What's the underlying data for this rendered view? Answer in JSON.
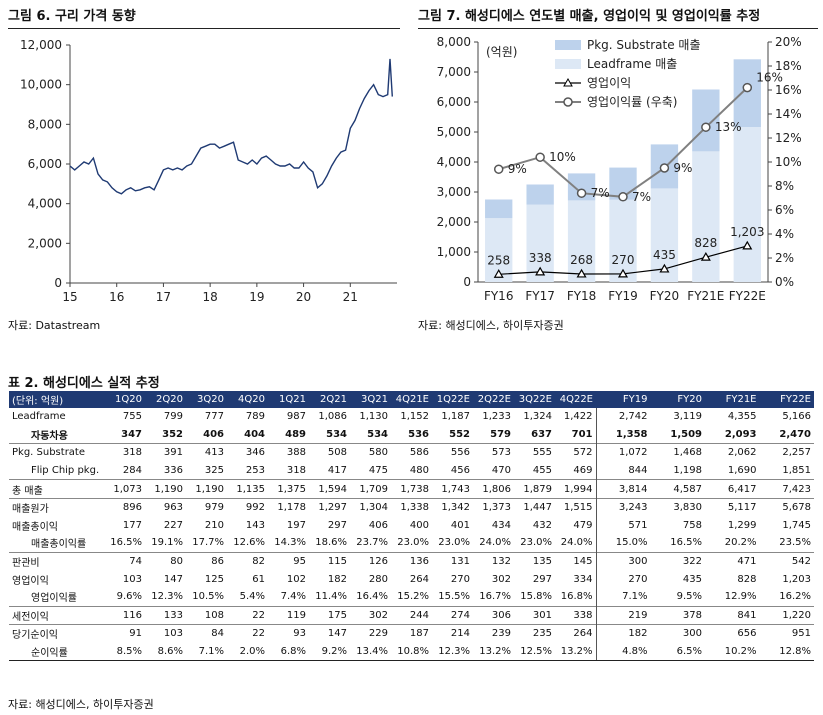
{
  "fig6": {
    "title": "그림 6. 구리 가격 동향",
    "source": "자료: Datastream"
  },
  "fig7": {
    "title": "그림 7. 해성디에스 연도별 매출, 영업이익 및 영업이익률 추정",
    "source": "자료: 해성디에스, 하이투자증권",
    "unit_label": "(억원)"
  },
  "table2": {
    "title": "표 2. 해성디에스 실적 추정",
    "source": "자료: 해성디에스, 하이투자증권",
    "headers": [
      "(단위: 억원)",
      "1Q20",
      "2Q20",
      "3Q20",
      "4Q20",
      "1Q21",
      "2Q21",
      "3Q21",
      "4Q21E",
      "1Q22E",
      "2Q22E",
      "3Q22E",
      "4Q22E",
      "FY19",
      "FY20",
      "FY21E",
      "FY22E"
    ],
    "rows": [
      {
        "label": "Leadframe",
        "values": [
          "755",
          "799",
          "777",
          "789",
          "987",
          "1,086",
          "1,130",
          "1,152",
          "1,187",
          "1,233",
          "1,324",
          "1,422",
          "2,742",
          "3,119",
          "4,355",
          "5,166"
        ]
      },
      {
        "label": "자동차용",
        "sub": true,
        "bold": true,
        "values": [
          "347",
          "352",
          "406",
          "404",
          "489",
          "534",
          "534",
          "536",
          "552",
          "579",
          "637",
          "701",
          "1,358",
          "1,509",
          "2,093",
          "2,470"
        ]
      },
      {
        "label": "Pkg. Substrate",
        "sep": true,
        "values": [
          "318",
          "391",
          "413",
          "346",
          "388",
          "508",
          "580",
          "586",
          "556",
          "573",
          "555",
          "572",
          "1,072",
          "1,468",
          "2,062",
          "2,257"
        ]
      },
      {
        "label": "Flip Chip pkg.",
        "sub": true,
        "values": [
          "284",
          "336",
          "325",
          "253",
          "318",
          "417",
          "475",
          "480",
          "456",
          "470",
          "455",
          "469",
          "844",
          "1,198",
          "1,690",
          "1,851"
        ]
      },
      {
        "label": "총 매출",
        "sep": true,
        "values": [
          "1,073",
          "1,190",
          "1,190",
          "1,135",
          "1,375",
          "1,594",
          "1,709",
          "1,738",
          "1,743",
          "1,806",
          "1,879",
          "1,994",
          "3,814",
          "4,587",
          "6,417",
          "7,423"
        ]
      },
      {
        "label": "매출원가",
        "sep": true,
        "values": [
          "896",
          "963",
          "979",
          "992",
          "1,178",
          "1,297",
          "1,304",
          "1,338",
          "1,342",
          "1,373",
          "1,447",
          "1,515",
          "3,243",
          "3,830",
          "5,117",
          "5,678"
        ]
      },
      {
        "label": "매출총이익",
        "values": [
          "177",
          "227",
          "210",
          "143",
          "197",
          "297",
          "406",
          "400",
          "401",
          "434",
          "432",
          "479",
          "571",
          "758",
          "1,299",
          "1,745"
        ]
      },
      {
        "label": "매출총이익률",
        "sub": true,
        "values": [
          "16.5%",
          "19.1%",
          "17.7%",
          "12.6%",
          "14.3%",
          "18.6%",
          "23.7%",
          "23.0%",
          "23.0%",
          "24.0%",
          "23.0%",
          "24.0%",
          "15.0%",
          "16.5%",
          "20.2%",
          "23.5%"
        ]
      },
      {
        "label": "판관비",
        "sep": true,
        "values": [
          "74",
          "80",
          "86",
          "82",
          "95",
          "115",
          "126",
          "136",
          "131",
          "132",
          "135",
          "145",
          "300",
          "322",
          "471",
          "542"
        ]
      },
      {
        "label": "영업이익",
        "values": [
          "103",
          "147",
          "125",
          "61",
          "102",
          "182",
          "280",
          "264",
          "270",
          "302",
          "297",
          "334",
          "270",
          "435",
          "828",
          "1,203"
        ]
      },
      {
        "label": "영업이익률",
        "sub": true,
        "values": [
          "9.6%",
          "12.3%",
          "10.5%",
          "5.4%",
          "7.4%",
          "11.4%",
          "16.4%",
          "15.2%",
          "15.5%",
          "16.7%",
          "15.8%",
          "16.8%",
          "7.1%",
          "9.5%",
          "12.9%",
          "16.2%"
        ]
      },
      {
        "label": "세전이익",
        "sep": true,
        "values": [
          "116",
          "133",
          "108",
          "22",
          "119",
          "175",
          "302",
          "244",
          "274",
          "306",
          "301",
          "338",
          "219",
          "378",
          "841",
          "1,220"
        ]
      },
      {
        "label": "당기순이익",
        "sep": true,
        "values": [
          "91",
          "103",
          "84",
          "22",
          "93",
          "147",
          "229",
          "187",
          "214",
          "239",
          "235",
          "264",
          "182",
          "300",
          "656",
          "951"
        ]
      },
      {
        "label": "순이익률",
        "sub": true,
        "last": true,
        "values": [
          "8.5%",
          "8.6%",
          "7.1%",
          "2.0%",
          "6.8%",
          "9.2%",
          "13.4%",
          "10.8%",
          "12.3%",
          "13.2%",
          "12.5%",
          "13.2%",
          "4.8%",
          "6.5%",
          "10.2%",
          "12.8%"
        ]
      }
    ]
  },
  "colors": {
    "copper_line": "#1f3a73",
    "pkg_substrate_bar": "#bdd2ec",
    "leadframe_bar": "#dde8f5",
    "op_profit_line": "#000000",
    "op_margin_line": "#808080",
    "table_header": "#1f3a73"
  },
  "chart_data": [
    {
      "type": "line",
      "title": "그림 6. 구리 가격 동향",
      "x_ticks": [
        "15",
        "16",
        "17",
        "18",
        "19",
        "20",
        "21"
      ],
      "y_ticks": [
        "0",
        "2,000",
        "4,000",
        "6,000",
        "8,000",
        "10,000",
        "12,000"
      ],
      "xlim": [
        2015.0,
        2022.0
      ],
      "ylim": [
        0,
        12000
      ],
      "grid": false,
      "series": [
        {
          "x": [
            2015.0,
            2015.1,
            2015.2,
            2015.3,
            2015.4,
            2015.5,
            2015.6,
            2015.7,
            2015.8,
            2015.9,
            2016.0,
            2016.1,
            2016.2,
            2016.3,
            2016.4,
            2016.5,
            2016.6,
            2016.7,
            2016.8,
            2016.9,
            2017.0,
            2017.1,
            2017.2,
            2017.3,
            2017.4,
            2017.5,
            2017.6,
            2017.7,
            2017.8,
            2017.9,
            2018.0,
            2018.1,
            2018.2,
            2018.3,
            2018.4,
            2018.5,
            2018.6,
            2018.7,
            2018.8,
            2018.9,
            2019.0,
            2019.1,
            2019.2,
            2019.3,
            2019.4,
            2019.5,
            2019.6,
            2019.7,
            2019.8,
            2019.9,
            2020.0,
            2020.1,
            2020.2,
            2020.3,
            2020.4,
            2020.5,
            2020.6,
            2020.7,
            2020.8,
            2020.9,
            2021.0,
            2021.1,
            2021.2,
            2021.3,
            2021.4,
            2021.5,
            2021.6,
            2021.7,
            2021.8,
            2021.85,
            2021.9
          ],
          "y": [
            5900,
            5700,
            5900,
            6100,
            6000,
            6300,
            5500,
            5200,
            5100,
            4800,
            4600,
            4500,
            4700,
            4800,
            4650,
            4700,
            4800,
            4850,
            4700,
            5200,
            5700,
            5800,
            5700,
            5800,
            5700,
            5900,
            6000,
            6400,
            6800,
            6900,
            7000,
            7000,
            6800,
            6900,
            7000,
            7100,
            6200,
            6100,
            6000,
            6200,
            6000,
            6300,
            6400,
            6200,
            6000,
            5900,
            5900,
            6000,
            5800,
            5800,
            6100,
            5800,
            5600,
            4800,
            5000,
            5400,
            5900,
            6300,
            6600,
            6700,
            7800,
            8200,
            8800,
            9300,
            9700,
            10000,
            9500,
            9400,
            9500,
            11300,
            9400
          ]
        }
      ]
    },
    {
      "type": "bar",
      "title": "그림 7. 해성디에스 연도별 매출, 영업이익 및 영업이익률 추정",
      "categories": [
        "FY16",
        "FY17",
        "FY18",
        "FY19",
        "FY20",
        "FY21E",
        "FY22E"
      ],
      "ylabel": "(억원)",
      "ylim": [
        0,
        8000
      ],
      "y2lim": [
        0,
        20
      ],
      "y_ticks": [
        "0",
        "1,000",
        "2,000",
        "3,000",
        "4,000",
        "5,000",
        "6,000",
        "7,000",
        "8,000"
      ],
      "y2_ticks": [
        "0%",
        "2%",
        "4%",
        "6%",
        "8%",
        "10%",
        "12%",
        "14%",
        "16%",
        "18%",
        "20%"
      ],
      "legend_placement": "top-center",
      "stacked": true,
      "series": [
        {
          "name": "Leadframe 매출",
          "kind": "bar",
          "values": [
            2130,
            2580,
            2720,
            2742,
            3119,
            4355,
            5166
          ]
        },
        {
          "name": "Pkg. Substrate 매출",
          "kind": "bar",
          "values": [
            620,
            670,
            900,
            1072,
            1468,
            2062,
            2257
          ]
        },
        {
          "name": "영업이익",
          "kind": "line",
          "axis": "left",
          "values": [
            258,
            338,
            268,
            270,
            435,
            828,
            1203
          ],
          "labels": [
            "258",
            "338",
            "268",
            "270",
            "435",
            "828",
            "1,203"
          ]
        },
        {
          "name": "영업이익률 (우축)",
          "kind": "line",
          "axis": "right",
          "values": [
            9.4,
            10.4,
            7.4,
            7.1,
            9.5,
            12.9,
            16.2
          ],
          "labels": [
            "9%",
            "10%",
            "7%",
            "7%",
            "9%",
            "13%",
            "16%"
          ]
        }
      ]
    }
  ]
}
